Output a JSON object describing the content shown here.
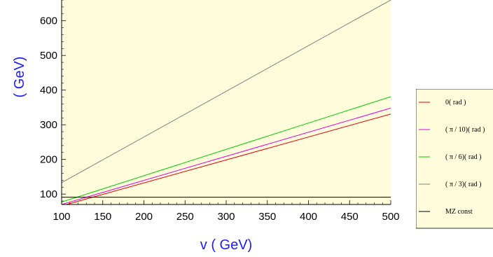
{
  "chart_data": {
    "type": "line",
    "xlabel": "v ( GeV)",
    "ylabel": "( GeV)",
    "xlim": [
      100,
      500
    ],
    "ylim": [
      70,
      660
    ],
    "xticks": [
      100,
      150,
      200,
      250,
      300,
      350,
      400,
      450,
      500
    ],
    "yticks": [
      100,
      200,
      300,
      400,
      500,
      600
    ],
    "background": "#fffcdc",
    "grid": false,
    "legend_position": "right",
    "series": [
      {
        "name": "0( rad )",
        "color": "#e00000",
        "x": [
          100,
          500
        ],
        "y": [
          66,
          331
        ]
      },
      {
        "name": "( π / 10)( rad )",
        "color": "#e000e0",
        "x": [
          100,
          500
        ],
        "y": [
          70,
          348
        ]
      },
      {
        "name": "( π / 6)( rad )",
        "color": "#00cc00",
        "x": [
          100,
          500
        ],
        "y": [
          77,
          381
        ]
      },
      {
        "name": "( π / 3)( rad )",
        "color": "#808080",
        "x": [
          100,
          500
        ],
        "y": [
          133,
          660
        ]
      },
      {
        "name": "MZ const",
        "color": "#000000",
        "x": [
          100,
          500
        ],
        "y": [
          91,
          91
        ]
      }
    ]
  }
}
